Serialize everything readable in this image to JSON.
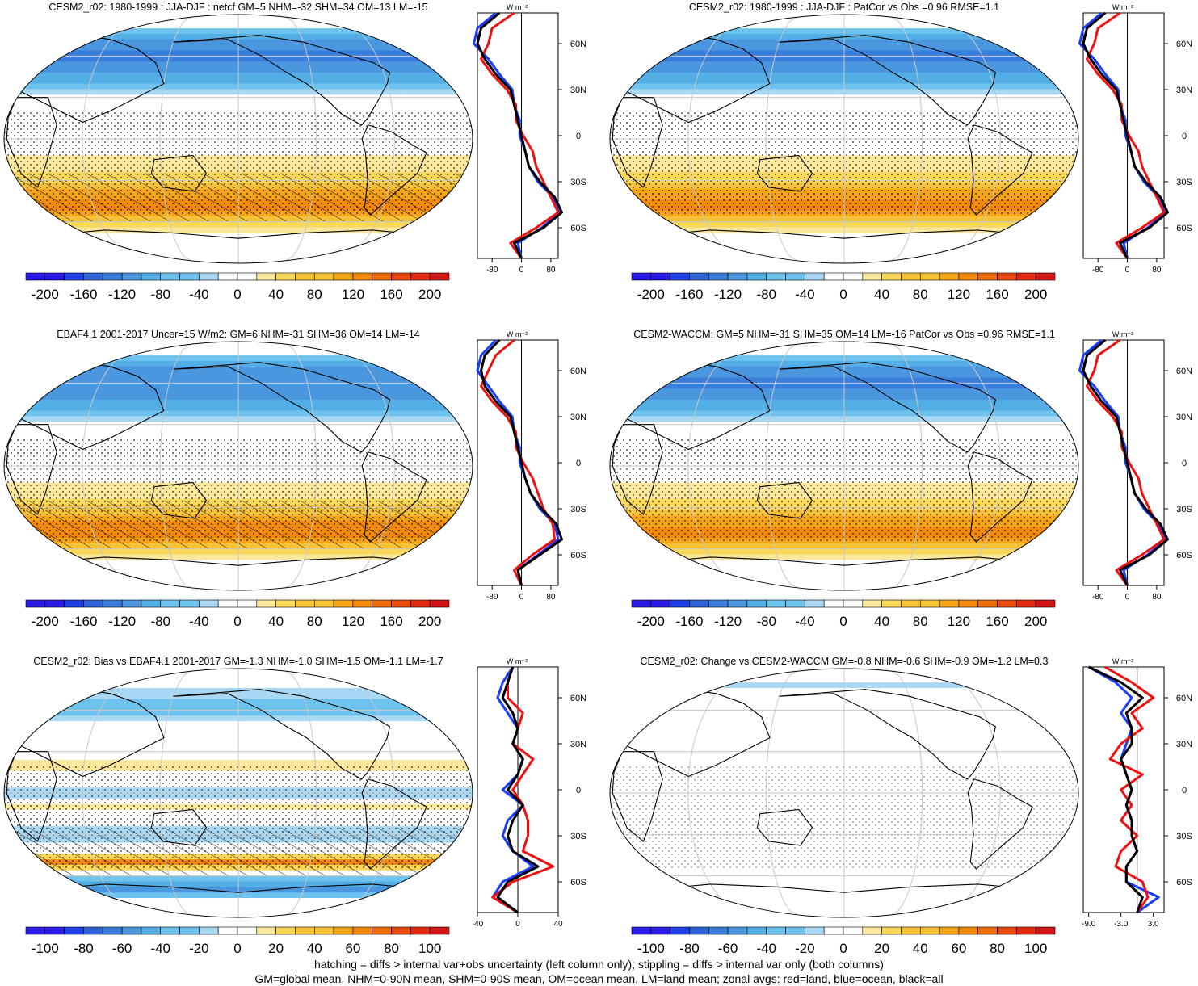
{
  "colors": {
    "scale": [
      "#2a1ae6",
      "#1e3ee6",
      "#2f63d8",
      "#3a7ddb",
      "#4a97e0",
      "#53aee5",
      "#6ec3ee",
      "#a8d8f4",
      "#ffffff",
      "#ffffff",
      "#fbe89d",
      "#f8d759",
      "#f7c236",
      "#f5a417",
      "#f38a0c",
      "#ee6c0b",
      "#e94a0d",
      "#e22a10",
      "#d11515"
    ],
    "land": "#000000",
    "ocean_line": "#1a3cff",
    "land_line": "#ee1111",
    "all_line": "#000000"
  },
  "panels": [
    {
      "title": "CESM2_r02: 1980-1999 : JJA-DJF : netcf GM=5 NHM=-32 SHM=34 OM=13 LM=-15",
      "cbar": [
        "-200",
        "-160",
        "-120",
        "-80",
        "-40",
        "0",
        "40",
        "80",
        "120",
        "160",
        "200"
      ],
      "prof_ticks": [
        "-80",
        "0",
        "80"
      ],
      "unit": "W m⁻²"
    },
    {
      "title": "CESM2_r02: 1980-1999 : JJA-DJF : PatCor vs Obs =0.96 RMSE=1.1",
      "cbar": [
        "-200",
        "-160",
        "-120",
        "-80",
        "-40",
        "0",
        "40",
        "80",
        "120",
        "160",
        "200"
      ],
      "prof_ticks": [
        "-80",
        "0",
        "80"
      ],
      "unit": "W m⁻²"
    },
    {
      "title": "EBAF4.1 2001-2017 Uncer=15 W/m2: GM=6 NHM=-31 SHM=36 OM=14 LM=-14",
      "cbar": [
        "-200",
        "-160",
        "-120",
        "-80",
        "-40",
        "0",
        "40",
        "80",
        "120",
        "160",
        "200"
      ],
      "prof_ticks": [
        "-80",
        "0",
        "80"
      ],
      "unit": "W m⁻²"
    },
    {
      "title": "CESM2-WACCM: GM=5 NHM=-31 SHM=35 OM=14 LM=-16 PatCor vs Obs =0.96 RMSE=1.1",
      "cbar": [
        "-200",
        "-160",
        "-120",
        "-80",
        "-40",
        "0",
        "40",
        "80",
        "120",
        "160",
        "200"
      ],
      "prof_ticks": [
        "-80",
        "0",
        "80"
      ],
      "unit": "W m⁻²"
    },
    {
      "title": "CESM2_r02: Bias vs EBAF4.1 2001-2017 GM=-1.3 NHM=-1.0 SHM=-1.5 OM=-1.1 LM=-1.7",
      "cbar": [
        "-100",
        "-80",
        "-60",
        "-40",
        "-20",
        "0",
        "20",
        "40",
        "60",
        "80",
        "100"
      ],
      "prof_ticks": [
        "-40",
        "0",
        "40"
      ],
      "unit": "W m⁻²"
    },
    {
      "title": "CESM2_r02: Change vs CESM2-WACCM GM=-0.8 NHM=-0.6 SHM=-0.9 OM=-1.2 LM=0.3",
      "cbar": [
        "-100",
        "-80",
        "-60",
        "-40",
        "-20",
        "0",
        "20",
        "40",
        "60",
        "80",
        "100"
      ],
      "prof_ticks": [
        "-9.0",
        "-3.0",
        "3.0"
      ],
      "unit": "W m⁻²"
    }
  ],
  "lat_labels": [
    "60N",
    "30N",
    "0",
    "30S",
    "60S"
  ],
  "footer": {
    "line1": "hatching = diffs > internal var+obs uncertainty (left column only); stippling = diffs > internal var only (both columns)",
    "line2": "GM=global mean, NHM=0-90N mean, SHM=0-90S mean, OM=ocean mean, LM=land mean; zonal avgs: red=land, blue=ocean, black=all"
  },
  "chart_data": [
    {
      "type": "heatmap",
      "title": "CESM2_r02: 1980-1999 : JJA-DJF : netcf GM=5 NHM=-32 SHM=34 OM=13 LM=-15",
      "colorbar": [
        -200,
        -160,
        -120,
        -80,
        -40,
        0,
        40,
        80,
        120,
        160,
        200
      ],
      "zonal_lat": [
        80,
        70,
        60,
        50,
        40,
        30,
        20,
        10,
        0,
        -10,
        -20,
        -30,
        -40,
        -50,
        -60,
        -70,
        -80
      ],
      "zonal_all": [
        -60,
        -110,
        -120,
        -100,
        -70,
        -30,
        -20,
        -10,
        0,
        10,
        20,
        50,
        90,
        110,
        60,
        -20,
        0
      ],
      "zonal_land": [
        -20,
        -80,
        -90,
        -110,
        -80,
        -40,
        -15,
        -15,
        5,
        30,
        40,
        60,
        80,
        100,
        40,
        -30,
        0
      ],
      "zonal_ocean": [
        -70,
        -120,
        -130,
        -90,
        -60,
        -25,
        -20,
        -5,
        -5,
        10,
        20,
        45,
        85,
        105,
        55,
        -10,
        0
      ],
      "zonal_xlim": [
        -120,
        100
      ]
    },
    {
      "type": "heatmap",
      "title": "CESM2_r02: 1980-1999 : JJA-DJF : PatCor vs Obs =0.96 RMSE=1.1",
      "colorbar": [
        -200,
        -160,
        -120,
        -80,
        -40,
        0,
        40,
        80,
        120,
        160,
        200
      ],
      "zonal_lat": [
        80,
        70,
        60,
        50,
        40,
        30,
        20,
        10,
        0,
        -10,
        -20,
        -30,
        -40,
        -50,
        -60,
        -70,
        -80
      ],
      "zonal_all": [
        -60,
        -110,
        -120,
        -100,
        -70,
        -30,
        -20,
        -10,
        0,
        10,
        20,
        50,
        90,
        110,
        60,
        -20,
        0
      ],
      "zonal_land": [
        -20,
        -80,
        -90,
        -110,
        -80,
        -40,
        -15,
        -15,
        5,
        30,
        40,
        60,
        80,
        100,
        40,
        -30,
        0
      ],
      "zonal_ocean": [
        -70,
        -120,
        -130,
        -90,
        -60,
        -25,
        -20,
        -5,
        -5,
        10,
        20,
        45,
        85,
        105,
        55,
        -10,
        0
      ],
      "zonal_xlim": [
        -120,
        100
      ]
    },
    {
      "type": "heatmap",
      "title": "EBAF4.1 2001-2017 Uncer=15 W/m2: GM=6 NHM=-31 SHM=36 OM=14 LM=-14",
      "colorbar": [
        -200,
        -160,
        -120,
        -80,
        -40,
        0,
        40,
        80,
        120,
        160,
        200
      ],
      "zonal_lat": [
        80,
        70,
        60,
        50,
        40,
        30,
        20,
        10,
        0,
        -10,
        -20,
        -30,
        -40,
        -50,
        -60,
        -70,
        -80
      ],
      "zonal_all": [
        -60,
        -100,
        -110,
        -100,
        -70,
        -30,
        -20,
        -10,
        0,
        10,
        25,
        55,
        95,
        110,
        50,
        -10,
        0
      ],
      "zonal_land": [
        -20,
        -70,
        -90,
        -110,
        -80,
        -40,
        -15,
        -15,
        5,
        30,
        45,
        60,
        85,
        90,
        30,
        -20,
        0
      ],
      "zonal_ocean": [
        -70,
        -110,
        -120,
        -90,
        -60,
        -25,
        -20,
        -5,
        -5,
        10,
        25,
        50,
        90,
        100,
        45,
        -10,
        0
      ],
      "zonal_xlim": [
        -120,
        100
      ]
    },
    {
      "type": "heatmap",
      "title": "CESM2-WACCM: GM=5 NHM=-31 SHM=35 OM=14 LM=-16 PatCor vs Obs =0.96 RMSE=1.1",
      "colorbar": [
        -200,
        -160,
        -120,
        -80,
        -40,
        0,
        40,
        80,
        120,
        160,
        200
      ],
      "zonal_lat": [
        80,
        70,
        60,
        50,
        40,
        30,
        20,
        10,
        0,
        -10,
        -20,
        -30,
        -40,
        -50,
        -60,
        -70,
        -80
      ],
      "zonal_all": [
        -60,
        -110,
        -120,
        -100,
        -70,
        -30,
        -20,
        -10,
        0,
        10,
        20,
        50,
        90,
        110,
        60,
        -20,
        0
      ],
      "zonal_land": [
        -20,
        -80,
        -90,
        -110,
        -80,
        -40,
        -15,
        -15,
        5,
        30,
        40,
        60,
        80,
        100,
        40,
        -30,
        0
      ],
      "zonal_ocean": [
        -70,
        -120,
        -130,
        -90,
        -60,
        -25,
        -20,
        -5,
        -5,
        10,
        20,
        45,
        85,
        105,
        55,
        -10,
        0
      ],
      "zonal_xlim": [
        -120,
        100
      ]
    },
    {
      "type": "heatmap",
      "title": "CESM2_r02: Bias vs EBAF4.1 2001-2017 GM=-1.3 NHM=-1.0 SHM=-1.5 OM=-1.1 LM=-1.7",
      "colorbar": [
        -100,
        -80,
        -60,
        -40,
        -20,
        0,
        20,
        40,
        60,
        80,
        100
      ],
      "zonal_lat": [
        80,
        70,
        60,
        50,
        40,
        30,
        20,
        10,
        0,
        -10,
        -20,
        -30,
        -40,
        -50,
        -60,
        -70,
        -80
      ],
      "zonal_all": [
        -5,
        -10,
        -15,
        -5,
        0,
        -5,
        5,
        0,
        -10,
        5,
        -5,
        -10,
        -5,
        20,
        -10,
        -20,
        0
      ],
      "zonal_land": [
        -5,
        -10,
        -10,
        5,
        0,
        -5,
        15,
        5,
        -5,
        5,
        10,
        10,
        5,
        35,
        -5,
        -25,
        0
      ],
      "zonal_ocean": [
        -5,
        -15,
        -20,
        -10,
        0,
        -5,
        5,
        0,
        -15,
        5,
        -10,
        -15,
        -5,
        15,
        -15,
        -25,
        0
      ],
      "zonal_xlim": [
        -40,
        40
      ]
    },
    {
      "type": "heatmap",
      "title": "CESM2_r02: Change vs CESM2-WACCM GM=-0.8 NHM=-0.6 SHM=-0.9 OM=-1.2 LM=0.3",
      "colorbar": [
        -100,
        -80,
        -60,
        -40,
        -20,
        0,
        20,
        40,
        60,
        80,
        100
      ],
      "zonal_lat": [
        80,
        70,
        60,
        50,
        40,
        30,
        20,
        10,
        0,
        -10,
        -20,
        -30,
        -40,
        -50,
        -60,
        -70,
        -80
      ],
      "zonal_all": [
        -9,
        -3,
        1,
        -2,
        -1,
        -1,
        -3,
        -2,
        -1,
        -2,
        -1,
        -1,
        0,
        -2,
        -2,
        1,
        0
      ],
      "zonal_land": [
        -6,
        -1,
        3,
        -1,
        1,
        -3,
        -5,
        1,
        -3,
        -1,
        -3,
        0,
        -3,
        -4,
        1,
        2,
        0
      ],
      "zonal_ocean": [
        -9,
        -4,
        -1,
        -3,
        -1,
        -2,
        -3,
        -2,
        -1,
        -2,
        -1,
        -1,
        0,
        -2,
        -2,
        4,
        0
      ],
      "zonal_xlim": [
        -10,
        5
      ]
    }
  ]
}
